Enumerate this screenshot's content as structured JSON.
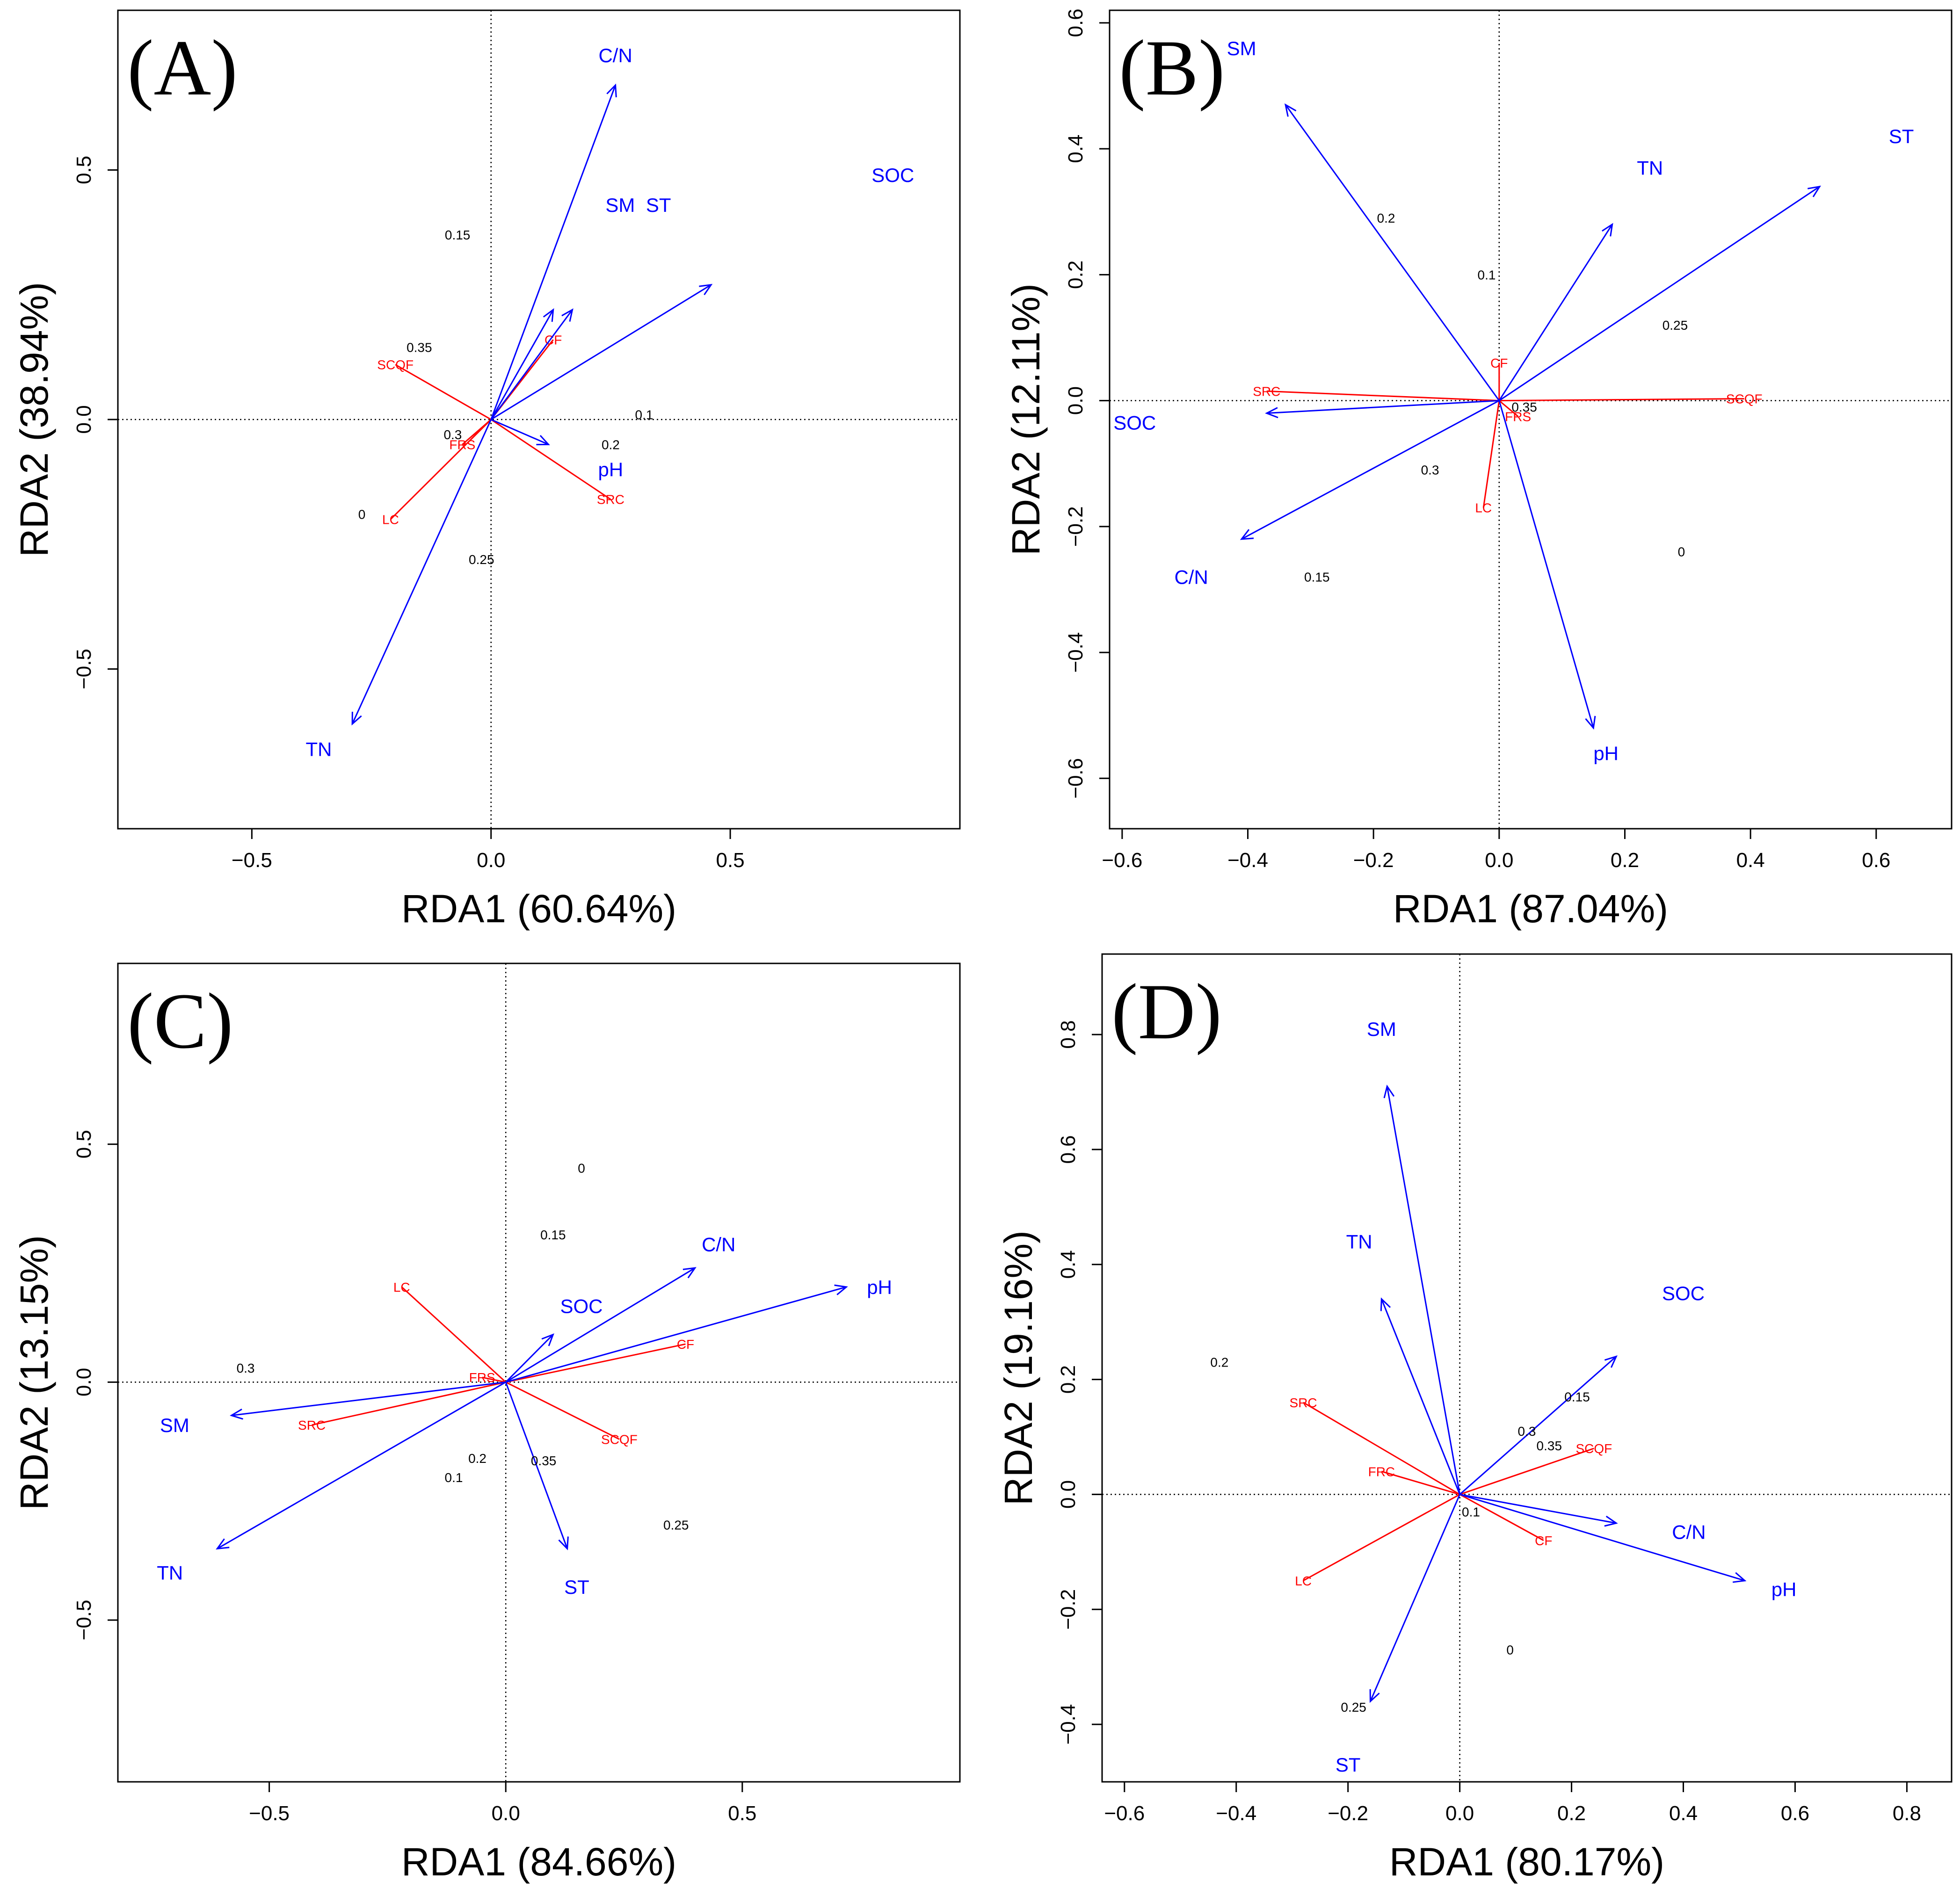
{
  "chart_data": [
    {
      "type": "scatter",
      "panel_label": "(A)",
      "xlabel": "RDA1 (60.64%)",
      "ylabel": "RDA2 (38.94%)",
      "xlim": [
        -0.78,
        0.98
      ],
      "ylim": [
        -0.82,
        0.82
      ],
      "xticks": [
        -0.5,
        0.0,
        0.5
      ],
      "yticks": [
        -0.5,
        0.0,
        0.5
      ],
      "env_color": "#0000FF",
      "species_color": "#FF0000",
      "site_color": "#000000",
      "env_arrows": [
        {
          "tip": [
            0.26,
            0.67
          ],
          "label": "C/N",
          "label_at": [
            0.26,
            0.73
          ]
        },
        {
          "tip": [
            0.13,
            0.22
          ],
          "label": "SM",
          "label_at": [
            0.27,
            0.43
          ]
        },
        {
          "tip": [
            0.17,
            0.22
          ],
          "label": "ST",
          "label_at": [
            0.35,
            0.43
          ]
        },
        {
          "tip": [
            0.46,
            0.27
          ],
          "label": "SOC",
          "label_at": [
            0.84,
            0.49
          ]
        },
        {
          "tip": [
            0.12,
            -0.05
          ],
          "label": "pH",
          "label_at": [
            0.25,
            -0.1
          ]
        },
        {
          "tip": [
            -0.29,
            -0.61
          ],
          "label": "TN",
          "label_at": [
            -0.36,
            -0.66
          ]
        }
      ],
      "species": [
        {
          "tip": [
            0.13,
            0.16
          ],
          "label": "CF"
        },
        {
          "tip": [
            -0.2,
            0.11
          ],
          "label": "SCQF"
        },
        {
          "tip": [
            -0.06,
            -0.05
          ],
          "label": "FRS"
        },
        {
          "tip": [
            0.25,
            -0.16
          ],
          "label": "SRC"
        },
        {
          "tip": [
            -0.21,
            -0.2
          ],
          "label": "LC"
        }
      ],
      "sites": [
        {
          "at": [
            -0.07,
            0.37
          ],
          "label": "0.15"
        },
        {
          "at": [
            -0.15,
            0.145
          ],
          "label": "0.35"
        },
        {
          "at": [
            -0.08,
            -0.03
          ],
          "label": "0.3"
        },
        {
          "at": [
            0.32,
            0.01
          ],
          "label": "0.1"
        },
        {
          "at": [
            0.25,
            -0.05
          ],
          "label": "0.2"
        },
        {
          "at": [
            -0.27,
            -0.19
          ],
          "label": "0"
        },
        {
          "at": [
            -0.02,
            -0.28
          ],
          "label": "0.25"
        }
      ]
    },
    {
      "type": "scatter",
      "panel_label": "(B)",
      "xlabel": "RDA1 (87.04%)",
      "ylabel": "RDA2 (12.11%)",
      "xlim": [
        -0.62,
        0.72
      ],
      "ylim": [
        -0.68,
        0.62
      ],
      "xticks": [
        -0.6,
        -0.4,
        -0.2,
        0.0,
        0.2,
        0.4,
        0.6
      ],
      "yticks": [
        -0.6,
        -0.4,
        -0.2,
        0.0,
        0.2,
        0.4,
        0.6
      ],
      "env_color": "#0000FF",
      "species_color": "#FF0000",
      "site_color": "#000000",
      "env_arrows": [
        {
          "tip": [
            -0.34,
            0.47
          ],
          "label": "SM",
          "label_at": [
            -0.41,
            0.56
          ]
        },
        {
          "tip": [
            0.18,
            0.28
          ],
          "label": "TN",
          "label_at": [
            0.24,
            0.37
          ]
        },
        {
          "tip": [
            0.51,
            0.34
          ],
          "label": "ST",
          "label_at": [
            0.64,
            0.42
          ]
        },
        {
          "tip": [
            -0.37,
            -0.02
          ],
          "label": "SOC",
          "label_at": [
            -0.58,
            -0.035
          ]
        },
        {
          "tip": [
            -0.41,
            -0.22
          ],
          "label": "C/N",
          "label_at": [
            -0.49,
            -0.28
          ]
        },
        {
          "tip": [
            0.15,
            -0.52
          ],
          "label": "pH",
          "label_at": [
            0.17,
            -0.56
          ]
        }
      ],
      "species": [
        {
          "tip": [
            0.0,
            0.06
          ],
          "label": "CF"
        },
        {
          "tip": [
            -0.37,
            0.015
          ],
          "label": "SRC"
        },
        {
          "tip": [
            0.39,
            0.003
          ],
          "label": "SCQF"
        },
        {
          "tip": [
            0.03,
            -0.025
          ],
          "label": "FRS"
        },
        {
          "tip": [
            -0.025,
            -0.17
          ],
          "label": "LC"
        }
      ],
      "sites": [
        {
          "at": [
            -0.18,
            0.29
          ],
          "label": "0.2"
        },
        {
          "at": [
            -0.02,
            0.2
          ],
          "label": "0.1"
        },
        {
          "at": [
            0.28,
            0.12
          ],
          "label": "0.25"
        },
        {
          "at": [
            0.04,
            -0.01
          ],
          "label": "0.35"
        },
        {
          "at": [
            -0.11,
            -0.11
          ],
          "label": "0.3"
        },
        {
          "at": [
            0.29,
            -0.24
          ],
          "label": "0"
        },
        {
          "at": [
            -0.29,
            -0.28
          ],
          "label": "0.15"
        }
      ]
    },
    {
      "type": "scatter",
      "panel_label": "(C)",
      "xlabel": "RDA1 (84.66%)",
      "ylabel": "RDA2 (13.15%)",
      "xlim": [
        -0.82,
        0.96
      ],
      "ylim": [
        -0.84,
        0.88
      ],
      "xticks": [
        -0.5,
        0.0,
        0.5
      ],
      "yticks": [
        -0.5,
        0.0,
        0.5
      ],
      "env_color": "#0000FF",
      "species_color": "#FF0000",
      "site_color": "#000000",
      "env_arrows": [
        {
          "tip": [
            0.4,
            0.24
          ],
          "label": "C/N",
          "label_at": [
            0.45,
            0.29
          ]
        },
        {
          "tip": [
            0.72,
            0.2
          ],
          "label": "pH",
          "label_at": [
            0.79,
            0.2
          ]
        },
        {
          "tip": [
            0.1,
            0.1
          ],
          "label": "SOC",
          "label_at": [
            0.16,
            0.16
          ]
        },
        {
          "tip": [
            -0.58,
            -0.07
          ],
          "label": "SM",
          "label_at": [
            -0.7,
            -0.09
          ]
        },
        {
          "tip": [
            -0.61,
            -0.35
          ],
          "label": "TN",
          "label_at": [
            -0.71,
            -0.4
          ]
        },
        {
          "tip": [
            0.13,
            -0.35
          ],
          "label": "ST",
          "label_at": [
            0.15,
            -0.43
          ]
        }
      ],
      "species": [
        {
          "tip": [
            -0.22,
            0.2
          ],
          "label": "LC"
        },
        {
          "tip": [
            0.38,
            0.08
          ],
          "label": "CF"
        },
        {
          "tip": [
            -0.05,
            0.01
          ],
          "label": "FRS"
        },
        {
          "tip": [
            -0.41,
            -0.09
          ],
          "label": "SRC"
        },
        {
          "tip": [
            0.24,
            -0.12
          ],
          "label": "SCQF"
        }
      ],
      "sites": [
        {
          "at": [
            0.16,
            0.45
          ],
          "label": "0"
        },
        {
          "at": [
            0.1,
            0.31
          ],
          "label": "0.15"
        },
        {
          "at": [
            -0.55,
            0.03
          ],
          "label": "0.3"
        },
        {
          "at": [
            -0.06,
            -0.16
          ],
          "label": "0.2"
        },
        {
          "at": [
            -0.11,
            -0.2
          ],
          "label": "0.1"
        },
        {
          "at": [
            0.08,
            -0.165
          ],
          "label": "0.35"
        },
        {
          "at": [
            0.36,
            -0.3
          ],
          "label": "0.25"
        }
      ]
    },
    {
      "type": "scatter",
      "panel_label": "(D)",
      "xlabel": "RDA1 (80.17%)",
      "ylabel": "RDA2 (19.16%)",
      "xlim": [
        -0.64,
        0.88
      ],
      "ylim": [
        -0.5,
        0.94
      ],
      "xticks": [
        -0.6,
        -0.4,
        -0.2,
        0.0,
        0.2,
        0.4,
        0.6,
        0.8
      ],
      "yticks": [
        -0.4,
        -0.2,
        0.0,
        0.2,
        0.4,
        0.6,
        0.8
      ],
      "env_color": "#0000FF",
      "species_color": "#FF0000",
      "site_color": "#000000",
      "env_arrows": [
        {
          "tip": [
            -0.13,
            0.71
          ],
          "label": "SM",
          "label_at": [
            -0.14,
            0.81
          ]
        },
        {
          "tip": [
            -0.14,
            0.34
          ],
          "label": "TN",
          "label_at": [
            -0.18,
            0.44
          ]
        },
        {
          "tip": [
            0.28,
            0.24
          ],
          "label": "SOC",
          "label_at": [
            0.4,
            0.35
          ]
        },
        {
          "tip": [
            0.28,
            -0.05
          ],
          "label": "C/N",
          "label_at": [
            0.41,
            -0.065
          ]
        },
        {
          "tip": [
            0.51,
            -0.15
          ],
          "label": "pH",
          "label_at": [
            0.58,
            -0.165
          ]
        },
        {
          "tip": [
            -0.16,
            -0.36
          ],
          "label": "ST",
          "label_at": [
            -0.2,
            -0.47
          ]
        }
      ],
      "species": [
        {
          "tip": [
            -0.28,
            0.16
          ],
          "label": "SRC"
        },
        {
          "tip": [
            -0.14,
            0.04
          ],
          "label": "FRC"
        },
        {
          "tip": [
            0.24,
            0.08
          ],
          "label": "SCQF"
        },
        {
          "tip": [
            0.15,
            -0.08
          ],
          "label": "CF"
        },
        {
          "tip": [
            -0.28,
            -0.15
          ],
          "label": "LC"
        }
      ],
      "sites": [
        {
          "at": [
            -0.43,
            0.23
          ],
          "label": "0.2"
        },
        {
          "at": [
            0.21,
            0.17
          ],
          "label": "0.15"
        },
        {
          "at": [
            0.12,
            0.11
          ],
          "label": "0.3"
        },
        {
          "at": [
            0.16,
            0.085
          ],
          "label": "0.35"
        },
        {
          "at": [
            0.02,
            -0.03
          ],
          "label": "0.1"
        },
        {
          "at": [
            0.09,
            -0.27
          ],
          "label": "0"
        },
        {
          "at": [
            -0.19,
            -0.37
          ],
          "label": "0.25"
        }
      ]
    }
  ]
}
